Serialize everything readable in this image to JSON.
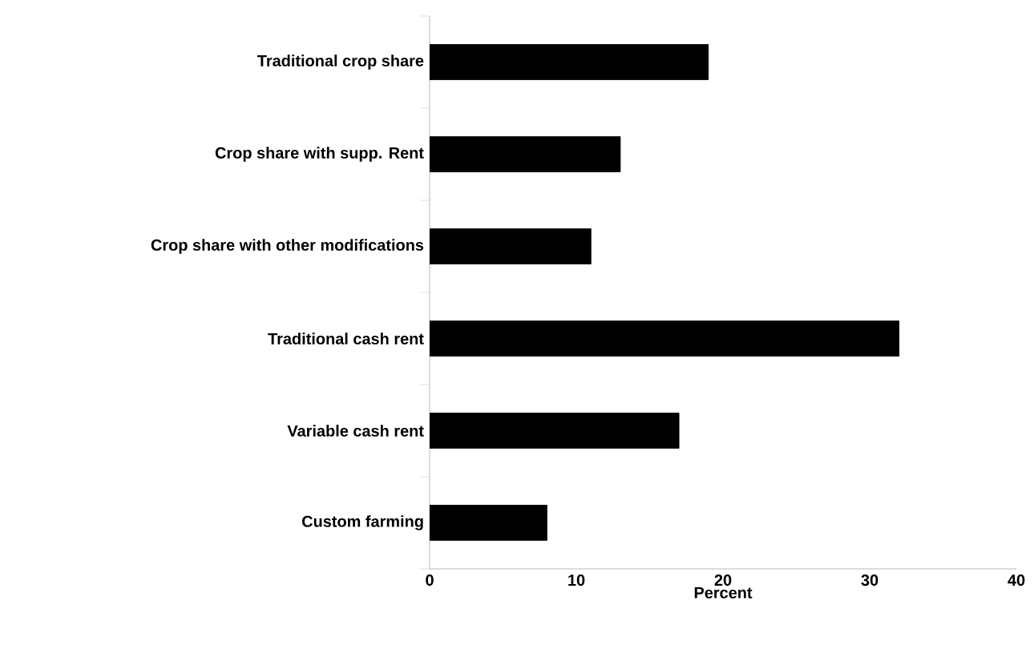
{
  "chart_data": {
    "type": "bar",
    "orientation": "horizontal",
    "xlabel": "Percent",
    "categories": [
      "Traditional crop share",
      "Crop share with supp. Rent",
      "Crop share with other modifications",
      "Traditional cash rent",
      "Variable cash rent",
      "Custom farming"
    ],
    "values": [
      19,
      13,
      11,
      32,
      17,
      8
    ],
    "color": "#000000",
    "xlim": [
      0,
      40
    ],
    "xticks": [
      0,
      10,
      20,
      30,
      40
    ],
    "grid": false
  }
}
